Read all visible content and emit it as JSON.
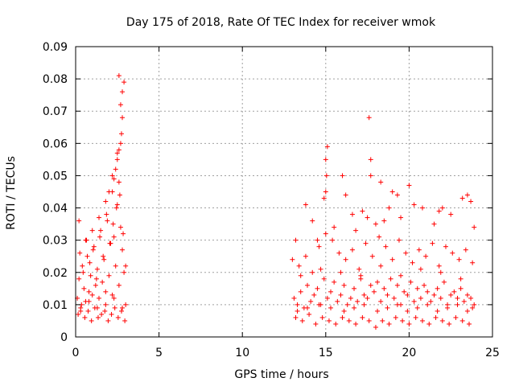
{
  "chart_data": {
    "type": "scatter",
    "title": "Day 175 of 2018, Rate Of TEC Index for receiver wmok",
    "xlabel": "GPS time / hours",
    "ylabel": "ROTI / TECUs",
    "xlim": [
      0,
      25
    ],
    "ylim": [
      0,
      0.09
    ],
    "xticks": [
      "0",
      "5",
      "10",
      "15",
      "20",
      "25"
    ],
    "yticks": [
      "0",
      "0.01",
      "0.02",
      "0.03",
      "0.04",
      "0.05",
      "0.06",
      "0.07",
      "0.08",
      "0.09"
    ],
    "grid": true,
    "marker": "+",
    "color": "#ff0000",
    "series": [
      {
        "x": [
          0.1,
          0.2,
          0.3,
          0.4,
          0.5,
          0.6,
          0.7,
          0.8,
          0.9,
          1.0,
          1.1,
          1.2,
          1.3,
          1.4,
          1.5,
          1.6,
          1.7,
          1.8,
          1.9,
          2.0,
          2.1,
          2.2,
          2.3,
          2.4,
          2.5,
          2.6,
          2.7,
          2.8,
          2.9,
          3.0,
          0.15,
          0.35,
          0.55,
          0.75,
          0.95,
          1.15,
          1.35,
          1.55,
          1.75,
          1.95,
          2.15,
          2.35,
          2.55,
          2.75,
          2.95,
          0.25,
          0.45,
          0.65,
          0.85,
          1.05,
          1.25,
          1.45,
          1.65,
          1.85,
          2.05,
          2.25,
          2.45,
          2.65,
          2.85,
          0.2,
          0.6,
          1.0,
          1.4,
          1.8,
          2.2,
          2.6,
          3.0,
          2.4,
          2.5,
          2.6,
          2.7,
          2.75,
          2.8,
          2.8,
          2.9,
          2.6,
          2.5,
          2.3,
          2.0,
          2.2,
          2.7,
          13.1,
          13.3,
          13.5,
          13.7,
          13.9,
          14.1,
          14.3,
          14.5,
          14.7,
          14.9,
          15.1,
          15.3,
          15.5,
          15.7,
          15.9,
          16.1,
          16.3,
          16.5,
          16.7,
          16.9,
          17.1,
          17.3,
          17.5,
          17.7,
          17.9,
          18.1,
          18.3,
          18.5,
          18.7,
          18.9,
          19.1,
          19.3,
          19.5,
          19.7,
          19.9,
          20.1,
          20.3,
          20.5,
          20.7,
          20.9,
          21.1,
          21.3,
          21.5,
          21.7,
          21.9,
          22.1,
          22.3,
          22.5,
          22.7,
          22.9,
          23.1,
          23.3,
          23.5,
          23.7,
          23.9,
          13.2,
          13.6,
          14.0,
          14.4,
          14.8,
          15.2,
          15.6,
          16.0,
          16.4,
          16.8,
          17.2,
          17.6,
          18.0,
          18.4,
          18.8,
          19.2,
          19.6,
          20.0,
          20.4,
          20.8,
          21.2,
          21.6,
          22.0,
          22.4,
          22.8,
          23.2,
          23.6,
          13.4,
          13.8,
          14.2,
          14.6,
          15.0,
          15.4,
          15.8,
          16.2,
          16.6,
          17.0,
          17.4,
          17.8,
          18.2,
          18.6,
          19.0,
          19.4,
          19.8,
          20.2,
          20.6,
          21.0,
          21.4,
          21.8,
          22.2,
          22.6,
          23.0,
          23.4,
          23.8,
          15.0,
          15.05,
          15.1,
          14.9,
          15.0,
          14.2,
          13.8,
          16.2,
          16.0,
          17.6,
          17.7,
          17.7,
          18.3,
          18.8,
          19.0,
          19.3,
          20.0,
          20.3,
          21.8,
          22.0,
          23.2,
          23.5,
          23.7,
          16.6,
          17.2,
          18.5,
          19.5,
          20.8,
          21.5,
          22.5,
          14.5,
          15.5,
          16.8,
          17.5,
          18.0,
          13.2,
          13.0,
          23.9,
          13.3,
          13.9,
          14.6,
          15.3,
          16.1,
          16.7,
          17.3,
          18.1,
          18.7,
          19.3,
          19.9,
          20.5,
          21.1,
          21.7,
          22.3,
          22.9,
          23.5,
          23.8,
          0.3,
          0.8,
          1.3,
          1.8,
          2.3,
          2.8,
          13.5,
          14.7,
          15.9,
          17.1,
          18.3,
          19.5,
          20.7,
          21.9,
          23.1
        ],
        "y": [
          0.012,
          0.018,
          0.009,
          0.022,
          0.015,
          0.011,
          0.025,
          0.014,
          0.019,
          0.013,
          0.028,
          0.016,
          0.021,
          0.012,
          0.033,
          0.017,
          0.024,
          0.014,
          0.036,
          0.019,
          0.029,
          0.013,
          0.031,
          0.022,
          0.041,
          0.016,
          0.034,
          0.027,
          0.02,
          0.01,
          0.007,
          0.01,
          0.006,
          0.008,
          0.005,
          0.009,
          0.006,
          0.007,
          0.008,
          0.005,
          0.007,
          0.009,
          0.006,
          0.008,
          0.005,
          0.026,
          0.02,
          0.03,
          0.023,
          0.027,
          0.018,
          0.031,
          0.025,
          0.038,
          0.029,
          0.035,
          0.04,
          0.044,
          0.032,
          0.036,
          0.03,
          0.033,
          0.037,
          0.042,
          0.045,
          0.048,
          0.022,
          0.052,
          0.055,
          0.058,
          0.06,
          0.063,
          0.068,
          0.076,
          0.079,
          0.081,
          0.057,
          0.049,
          0.045,
          0.05,
          0.072,
          0.012,
          0.01,
          0.014,
          0.009,
          0.016,
          0.011,
          0.013,
          0.015,
          0.01,
          0.018,
          0.012,
          0.014,
          0.017,
          0.011,
          0.013,
          0.016,
          0.01,
          0.012,
          0.015,
          0.011,
          0.019,
          0.013,
          0.012,
          0.016,
          0.014,
          0.017,
          0.011,
          0.015,
          0.013,
          0.018,
          0.012,
          0.016,
          0.01,
          0.014,
          0.013,
          0.017,
          0.011,
          0.015,
          0.012,
          0.016,
          0.014,
          0.011,
          0.013,
          0.015,
          0.012,
          0.017,
          0.01,
          0.013,
          0.014,
          0.012,
          0.015,
          0.011,
          0.013,
          0.012,
          0.01,
          0.006,
          0.005,
          0.007,
          0.004,
          0.006,
          0.005,
          0.004,
          0.006,
          0.005,
          0.004,
          0.006,
          0.005,
          0.003,
          0.005,
          0.004,
          0.006,
          0.005,
          0.004,
          0.006,
          0.005,
          0.004,
          0.006,
          0.005,
          0.004,
          0.006,
          0.005,
          0.004,
          0.022,
          0.025,
          0.02,
          0.028,
          0.032,
          0.03,
          0.026,
          0.024,
          0.027,
          0.021,
          0.029,
          0.025,
          0.031,
          0.028,
          0.024,
          0.03,
          0.026,
          0.023,
          0.027,
          0.025,
          0.029,
          0.022,
          0.028,
          0.026,
          0.024,
          0.027,
          0.023,
          0.045,
          0.05,
          0.059,
          0.043,
          0.055,
          0.036,
          0.041,
          0.044,
          0.05,
          0.068,
          0.055,
          0.05,
          0.048,
          0.04,
          0.045,
          0.044,
          0.047,
          0.041,
          0.039,
          0.04,
          0.043,
          0.044,
          0.042,
          0.038,
          0.039,
          0.036,
          0.037,
          0.04,
          0.035,
          0.038,
          0.03,
          0.034,
          0.033,
          0.037,
          0.035,
          0.03,
          0.024,
          0.034,
          0.008,
          0.009,
          0.01,
          0.009,
          0.008,
          0.009,
          0.01,
          0.008,
          0.009,
          0.01,
          0.008,
          0.009,
          0.01,
          0.008,
          0.009,
          0.01,
          0.008,
          0.009,
          0.008,
          0.011,
          0.009,
          0.01,
          0.012,
          0.009,
          0.019,
          0.021,
          0.02,
          0.018,
          0.022,
          0.019,
          0.021,
          0.02,
          0.018
        ]
      }
    ]
  }
}
